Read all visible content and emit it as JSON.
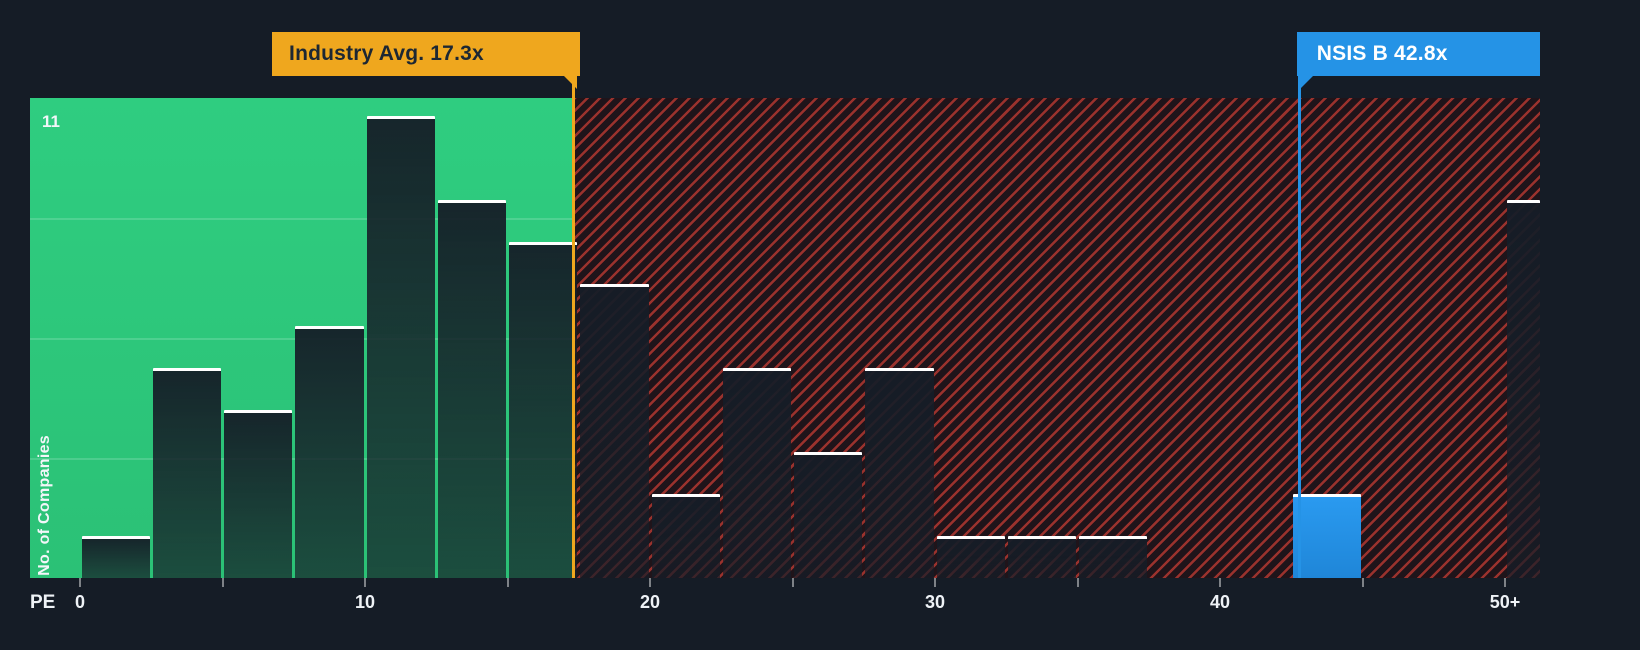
{
  "colors": {
    "background": "#151c26",
    "green_zone": "#2fcd80",
    "red_hatch": "#ff4a3d",
    "bar_fill": "#151d27",
    "bar_top": "#ffffff",
    "industry_marker": "#efa71e",
    "highlight_marker": "#2593e6",
    "axis_text": "#eef2f6"
  },
  "chart_data": {
    "type": "bar",
    "title": "PE ratio distribution vs industry",
    "xlabel": "PE",
    "ylabel": "No. of Companies",
    "ymax_label": "11",
    "ylim": [
      0,
      11.5
    ],
    "bin_width": 2.5,
    "grid": "subtle horizontal lines in green zone",
    "legend_position": "none",
    "x_ticks": [
      {
        "value": 0,
        "label": "0"
      },
      {
        "value": 10,
        "label": "10"
      },
      {
        "value": 20,
        "label": "20"
      },
      {
        "value": 30,
        "label": "30"
      },
      {
        "value": 40,
        "label": "40"
      },
      {
        "value": 50,
        "label": "50+"
      }
    ],
    "minor_tick_step": 5,
    "bins": [
      {
        "start": 0,
        "count": 1
      },
      {
        "start": 2.5,
        "count": 5
      },
      {
        "start": 5,
        "count": 4
      },
      {
        "start": 7.5,
        "count": 6
      },
      {
        "start": 10,
        "count": 11
      },
      {
        "start": 12.5,
        "count": 9
      },
      {
        "start": 15,
        "count": 8
      },
      {
        "start": 17.5,
        "count": 7
      },
      {
        "start": 20,
        "count": 2
      },
      {
        "start": 22.5,
        "count": 5
      },
      {
        "start": 25,
        "count": 3
      },
      {
        "start": 27.5,
        "count": 5
      },
      {
        "start": 30,
        "count": 1
      },
      {
        "start": 32.5,
        "count": 1
      },
      {
        "start": 35,
        "count": 1
      },
      {
        "start": 42.5,
        "count": 2,
        "highlight": true
      },
      {
        "start": 50,
        "count": 9
      }
    ],
    "industry_avg": {
      "label": "Industry Avg. 17.3x",
      "value": 17.3
    },
    "highlight": {
      "label": "NSIS B 42.8x",
      "value": 42.8
    }
  }
}
